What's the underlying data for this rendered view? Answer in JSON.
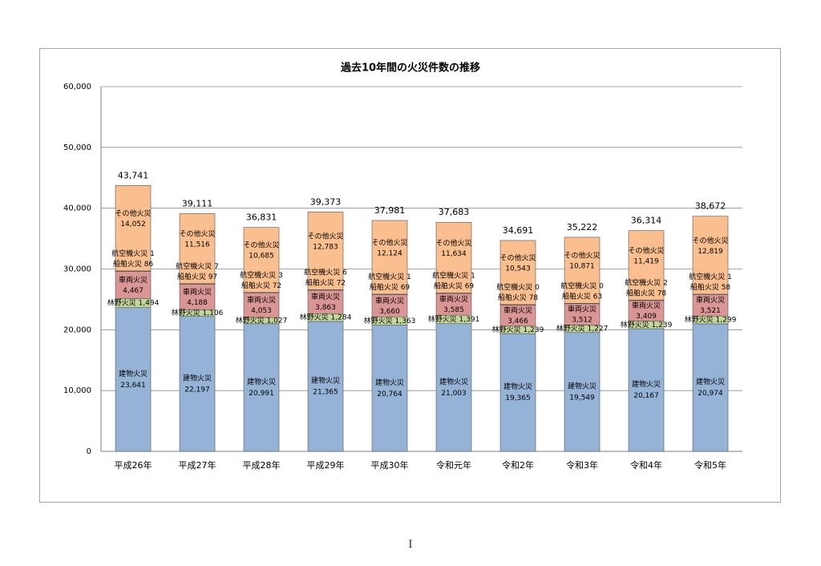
{
  "page": {
    "page_number": "I"
  },
  "colors": {
    "building": "#95b3d7",
    "forest": "#c4d79b",
    "vehicle": "#da9694",
    "ship": "#da9694",
    "aircraft": "#da9694",
    "other": "#fabf8f",
    "gridline": "#8c8c8c",
    "bar_edge": "#555555"
  },
  "chart_data": {
    "type": "bar",
    "stacked": true,
    "title": "過去10年間の火災件数の推移",
    "xlabel": "",
    "ylabel": "",
    "ylim": [
      0,
      60000
    ],
    "yticks": [
      0,
      10000,
      20000,
      30000,
      40000,
      50000,
      60000
    ],
    "ytick_labels": [
      "0",
      "10,000",
      "20,000",
      "30,000",
      "40,000",
      "50,000",
      "60,000"
    ],
    "grid": true,
    "legend": "none",
    "categories": [
      "平成26年",
      "平成27年",
      "平成28年",
      "平成29年",
      "平成30年",
      "令和元年",
      "令和2年",
      "令和3年",
      "令和4年",
      "令和5年"
    ],
    "series": [
      {
        "name": "建物火災",
        "color_key": "building",
        "values": [
          23641,
          22197,
          20991,
          21365,
          20764,
          21003,
          19365,
          19549,
          20167,
          20974
        ],
        "labels": [
          "23,641",
          "22,197",
          "20,991",
          "21,365",
          "20,764",
          "21,003",
          "19,365",
          "19,549",
          "20,167",
          "20,974"
        ]
      },
      {
        "name": "林野火災",
        "color_key": "forest",
        "values": [
          1494,
          1106,
          1027,
          1284,
          1363,
          1391,
          1239,
          1227,
          1239,
          1299
        ],
        "labels": [
          "1,494",
          "1,106",
          "1,027",
          "1,284",
          "1,363",
          "1,391",
          "1,239",
          "1,227",
          "1,239",
          "1,299"
        ]
      },
      {
        "name": "車両火災",
        "color_key": "vehicle",
        "values": [
          4467,
          4188,
          4053,
          3863,
          3660,
          3585,
          3466,
          3512,
          3409,
          3521
        ],
        "labels": [
          "4,467",
          "4,188",
          "4,053",
          "3,863",
          "3,660",
          "3,585",
          "3,466",
          "3,512",
          "3,409",
          "3,521"
        ]
      },
      {
        "name": "船舶火災",
        "color_key": "ship",
        "values": [
          86,
          97,
          72,
          72,
          69,
          69,
          78,
          63,
          78,
          58
        ],
        "labels": [
          "86",
          "97",
          "72",
          "72",
          "69",
          "69",
          "78",
          "63",
          "78",
          "58"
        ]
      },
      {
        "name": "航空機火災",
        "color_key": "aircraft",
        "values": [
          1,
          7,
          3,
          6,
          1,
          1,
          0,
          0,
          2,
          1
        ],
        "labels": [
          "1",
          "7",
          "3",
          "6",
          "1",
          "1",
          "0",
          "0",
          "2",
          "1"
        ]
      },
      {
        "name": "その他火災",
        "color_key": "other",
        "values": [
          14052,
          11516,
          10685,
          12783,
          12124,
          11634,
          10543,
          10871,
          11419,
          12819
        ],
        "labels": [
          "14,052",
          "11,516",
          "10,685",
          "12,783",
          "12,124",
          "11,634",
          "10,543",
          "10,871",
          "11,419",
          "12,819"
        ]
      }
    ],
    "totals": [
      43741,
      39111,
      36831,
      39373,
      37981,
      37683,
      34691,
      35222,
      36314,
      38672
    ],
    "total_labels": [
      "43,741",
      "39,111",
      "36,831",
      "39,373",
      "37,981",
      "37,683",
      "34,691",
      "35,222",
      "36,314",
      "38,672"
    ]
  }
}
